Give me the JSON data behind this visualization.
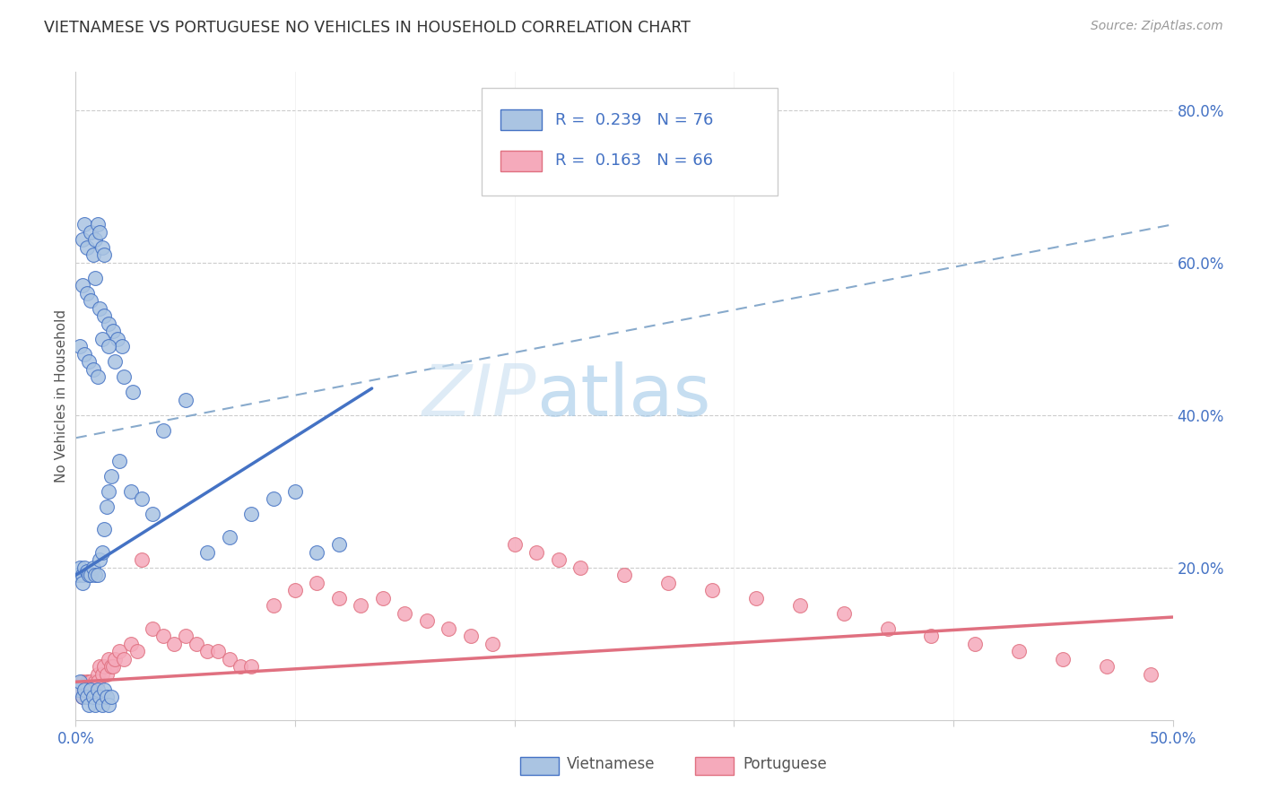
{
  "title": "VIETNAMESE VS PORTUGUESE NO VEHICLES IN HOUSEHOLD CORRELATION CHART",
  "source": "Source: ZipAtlas.com",
  "ylabel": "No Vehicles in Household",
  "xlim": [
    0.0,
    0.5
  ],
  "ylim": [
    0.0,
    0.85
  ],
  "xticks": [
    0.0,
    0.1,
    0.2,
    0.3,
    0.4,
    0.5
  ],
  "xticklabels": [
    "0.0%",
    "",
    "",
    "",
    "",
    "50.0%"
  ],
  "ytick_right_vals": [
    0.2,
    0.4,
    0.6,
    0.8
  ],
  "ytick_right_labels": [
    "20.0%",
    "40.0%",
    "60.0%",
    "80.0%"
  ],
  "viet_R": "0.239",
  "viet_N": "76",
  "port_R": "0.163",
  "port_N": "66",
  "viet_color": "#aac4e2",
  "port_color": "#f5aabb",
  "viet_line_color": "#4472c4",
  "port_line_color": "#e07080",
  "dashed_line_color": "#88aacc",
  "watermark_text": "ZIPatlas",
  "viet_line_x0": 0.0,
  "viet_line_y0": 0.19,
  "viet_line_x1": 0.135,
  "viet_line_y1": 0.435,
  "port_line_x0": 0.0,
  "port_line_y0": 0.05,
  "port_line_x1": 0.5,
  "port_line_y1": 0.135,
  "dash_line_x0": 0.0,
  "dash_line_y0": 0.37,
  "dash_line_x1": 0.5,
  "dash_line_y1": 0.65,
  "viet_scatter_x": [
    0.003,
    0.004,
    0.005,
    0.007,
    0.008,
    0.009,
    0.01,
    0.011,
    0.012,
    0.013,
    0.003,
    0.005,
    0.007,
    0.009,
    0.011,
    0.013,
    0.015,
    0.017,
    0.019,
    0.021,
    0.002,
    0.004,
    0.006,
    0.008,
    0.01,
    0.012,
    0.015,
    0.018,
    0.022,
    0.026,
    0.001,
    0.002,
    0.003,
    0.003,
    0.004,
    0.005,
    0.006,
    0.007,
    0.008,
    0.009,
    0.01,
    0.011,
    0.012,
    0.013,
    0.014,
    0.015,
    0.016,
    0.02,
    0.025,
    0.03,
    0.035,
    0.04,
    0.05,
    0.06,
    0.07,
    0.08,
    0.09,
    0.1,
    0.11,
    0.12,
    0.001,
    0.002,
    0.003,
    0.004,
    0.005,
    0.006,
    0.007,
    0.008,
    0.009,
    0.01,
    0.011,
    0.012,
    0.013,
    0.014,
    0.015,
    0.016
  ],
  "viet_scatter_y": [
    0.63,
    0.65,
    0.62,
    0.64,
    0.61,
    0.63,
    0.65,
    0.64,
    0.62,
    0.61,
    0.57,
    0.56,
    0.55,
    0.58,
    0.54,
    0.53,
    0.52,
    0.51,
    0.5,
    0.49,
    0.49,
    0.48,
    0.47,
    0.46,
    0.45,
    0.5,
    0.49,
    0.47,
    0.45,
    0.43,
    0.19,
    0.2,
    0.19,
    0.18,
    0.2,
    0.195,
    0.19,
    0.19,
    0.2,
    0.19,
    0.19,
    0.21,
    0.22,
    0.25,
    0.28,
    0.3,
    0.32,
    0.34,
    0.3,
    0.29,
    0.27,
    0.38,
    0.42,
    0.22,
    0.24,
    0.27,
    0.29,
    0.3,
    0.22,
    0.23,
    0.04,
    0.05,
    0.03,
    0.04,
    0.03,
    0.02,
    0.04,
    0.03,
    0.02,
    0.04,
    0.03,
    0.02,
    0.04,
    0.03,
    0.02,
    0.03
  ],
  "port_scatter_x": [
    0.001,
    0.002,
    0.003,
    0.003,
    0.004,
    0.005,
    0.005,
    0.006,
    0.006,
    0.007,
    0.007,
    0.008,
    0.009,
    0.01,
    0.01,
    0.011,
    0.012,
    0.013,
    0.014,
    0.015,
    0.016,
    0.017,
    0.018,
    0.02,
    0.022,
    0.025,
    0.028,
    0.03,
    0.035,
    0.04,
    0.045,
    0.05,
    0.055,
    0.06,
    0.065,
    0.07,
    0.075,
    0.08,
    0.09,
    0.1,
    0.11,
    0.12,
    0.13,
    0.14,
    0.15,
    0.16,
    0.17,
    0.18,
    0.19,
    0.2,
    0.21,
    0.22,
    0.23,
    0.25,
    0.27,
    0.29,
    0.31,
    0.33,
    0.35,
    0.37,
    0.39,
    0.41,
    0.43,
    0.45,
    0.47,
    0.49
  ],
  "port_scatter_y": [
    0.04,
    0.04,
    0.05,
    0.03,
    0.04,
    0.05,
    0.04,
    0.04,
    0.05,
    0.04,
    0.05,
    0.04,
    0.05,
    0.06,
    0.05,
    0.07,
    0.06,
    0.07,
    0.06,
    0.08,
    0.07,
    0.07,
    0.08,
    0.09,
    0.08,
    0.1,
    0.09,
    0.21,
    0.12,
    0.11,
    0.1,
    0.11,
    0.1,
    0.09,
    0.09,
    0.08,
    0.07,
    0.07,
    0.15,
    0.17,
    0.18,
    0.16,
    0.15,
    0.16,
    0.14,
    0.13,
    0.12,
    0.11,
    0.1,
    0.23,
    0.22,
    0.21,
    0.2,
    0.19,
    0.18,
    0.17,
    0.16,
    0.15,
    0.14,
    0.12,
    0.11,
    0.1,
    0.09,
    0.08,
    0.07,
    0.06
  ]
}
